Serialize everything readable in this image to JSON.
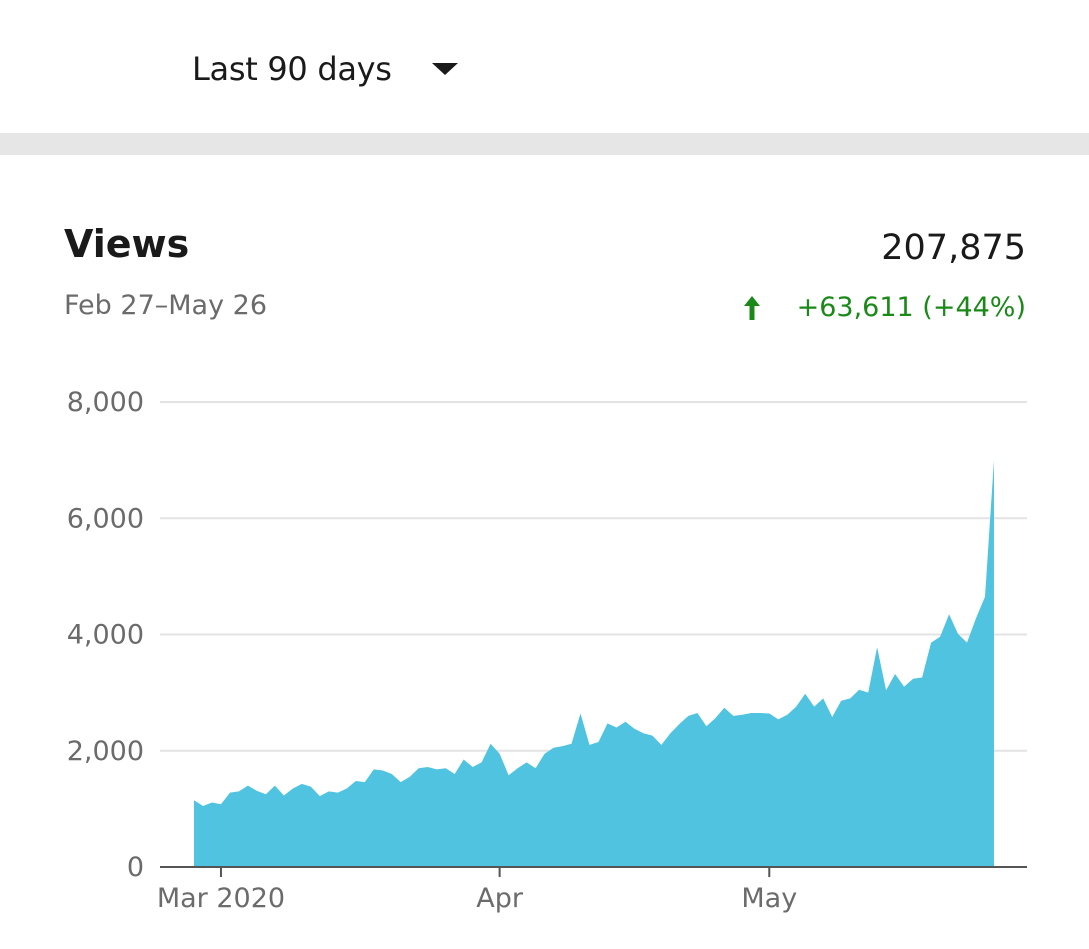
{
  "header": {
    "range_label": "Last 90 days"
  },
  "card": {
    "title": "Views",
    "date_range": "Feb 27–May 26",
    "total": "207,875",
    "change": "+63,611 (+44%)",
    "change_direction": "up",
    "change_icon": "arrow-up-icon"
  },
  "colors": {
    "area_fill": "#4fc3df",
    "positive": "#1a8917",
    "gridline": "#e3e3e3",
    "axis": "#555555"
  },
  "chart_data": {
    "type": "area",
    "title": "Views",
    "x_start": "2020-02-27",
    "x_end": "2020-05-26",
    "ylim": [
      0,
      8000
    ],
    "y_ticks": [
      0,
      2000,
      4000,
      6000,
      8000
    ],
    "y_tick_labels": [
      "0",
      "2,000",
      "4,000",
      "6,000",
      "8,000"
    ],
    "x_ticks": [
      {
        "date": "2020-03-01",
        "label": "Mar 2020"
      },
      {
        "date": "2020-04-01",
        "label": "Apr"
      },
      {
        "date": "2020-05-01",
        "label": "May"
      }
    ],
    "grid": true,
    "series": [
      {
        "x": [
          "2020-02-27",
          "2020-02-28",
          "2020-02-29",
          "2020-03-01",
          "2020-03-02",
          "2020-03-03",
          "2020-03-04",
          "2020-03-05",
          "2020-03-06",
          "2020-03-07",
          "2020-03-08",
          "2020-03-09",
          "2020-03-10",
          "2020-03-11",
          "2020-03-12",
          "2020-03-13",
          "2020-03-14",
          "2020-03-15",
          "2020-03-16",
          "2020-03-17",
          "2020-03-18",
          "2020-03-19",
          "2020-03-20",
          "2020-03-21",
          "2020-03-22",
          "2020-03-23",
          "2020-03-24",
          "2020-03-25",
          "2020-03-26",
          "2020-03-27",
          "2020-03-28",
          "2020-03-29",
          "2020-03-30",
          "2020-03-31",
          "2020-04-01",
          "2020-04-02",
          "2020-04-03",
          "2020-04-04",
          "2020-04-05",
          "2020-04-06",
          "2020-04-07",
          "2020-04-08",
          "2020-04-09",
          "2020-04-10",
          "2020-04-11",
          "2020-04-12",
          "2020-04-13",
          "2020-04-14",
          "2020-04-15",
          "2020-04-16",
          "2020-04-17",
          "2020-04-18",
          "2020-04-19",
          "2020-04-20",
          "2020-04-21",
          "2020-04-22",
          "2020-04-23",
          "2020-04-24",
          "2020-04-25",
          "2020-04-26",
          "2020-04-27",
          "2020-04-28",
          "2020-04-29",
          "2020-04-30",
          "2020-05-01",
          "2020-05-02",
          "2020-05-03",
          "2020-05-04",
          "2020-05-05",
          "2020-05-06",
          "2020-05-07",
          "2020-05-08",
          "2020-05-09",
          "2020-05-10",
          "2020-05-11",
          "2020-05-12",
          "2020-05-13",
          "2020-05-14",
          "2020-05-15",
          "2020-05-16",
          "2020-05-17",
          "2020-05-18",
          "2020-05-19",
          "2020-05-20",
          "2020-05-21",
          "2020-05-22",
          "2020-05-23",
          "2020-05-24",
          "2020-05-25",
          "2020-05-26"
        ],
        "values": [
          1150,
          1050,
          1110,
          1080,
          1280,
          1300,
          1400,
          1310,
          1250,
          1400,
          1230,
          1350,
          1430,
          1380,
          1220,
          1300,
          1280,
          1350,
          1480,
          1460,
          1680,
          1660,
          1600,
          1460,
          1550,
          1700,
          1720,
          1680,
          1700,
          1600,
          1850,
          1720,
          1800,
          2120,
          1950,
          1580,
          1700,
          1800,
          1700,
          1950,
          2050,
          2080,
          2120,
          2640,
          2100,
          2150,
          2470,
          2400,
          2500,
          2380,
          2300,
          2260,
          2100,
          2300,
          2460,
          2600,
          2650,
          2420,
          2560,
          2740,
          2600,
          2620,
          2650,
          2650,
          2640,
          2540,
          2620,
          2760,
          2980,
          2760,
          2900,
          2580,
          2860,
          2900,
          3050,
          3000,
          3780,
          3040,
          3320,
          3100,
          3240,
          3260,
          3860,
          3960,
          4350,
          4010,
          3860,
          4280,
          4650,
          7000
        ]
      }
    ]
  }
}
